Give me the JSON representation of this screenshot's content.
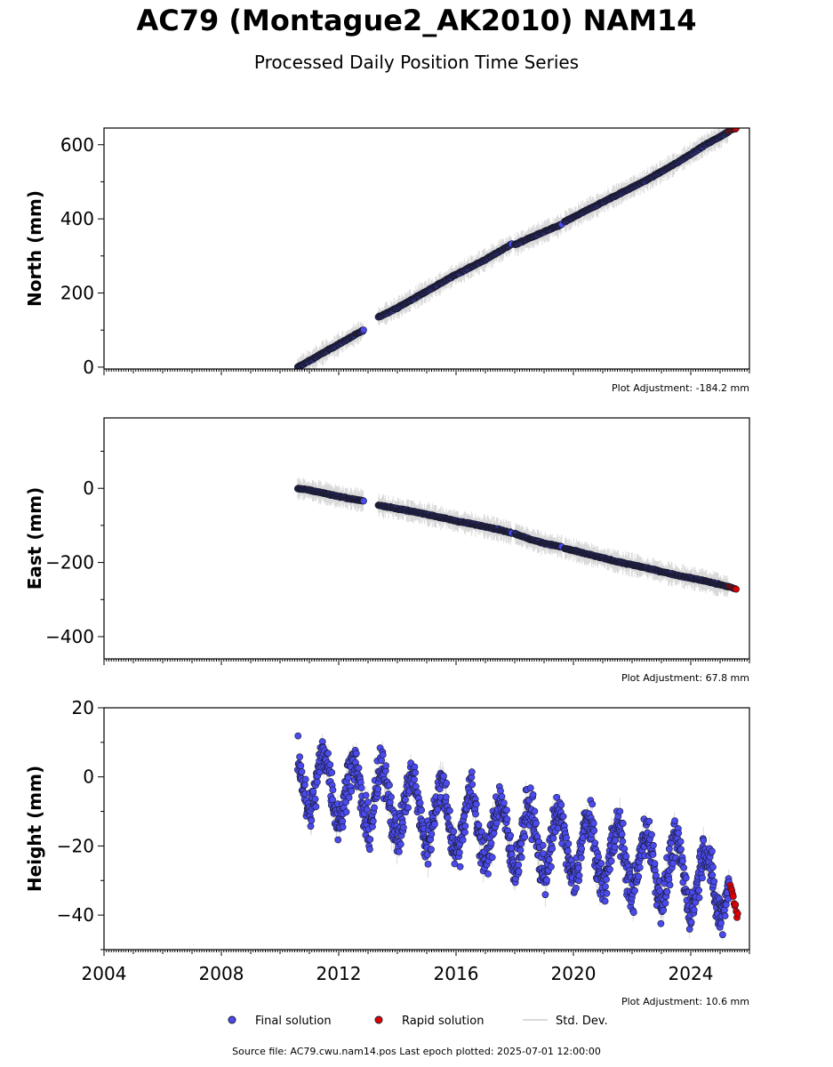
{
  "header": {
    "title": "AC79 (Montague2_AK2010) NAM14",
    "subtitle": "Processed Daily Position Time Series"
  },
  "footer": {
    "source": "Source file: AC79.cwu.nam14.pos  Last epoch plotted: 2025-07-01 12:00:00"
  },
  "legend": {
    "final": "Final solution",
    "rapid": "Rapid solution",
    "std": "Std. Dev."
  },
  "colors": {
    "final": "#4a4aee",
    "rapid": "#e00000",
    "marker_edge": "#1a1a2a",
    "std_dev": "#9a9a9a"
  },
  "chart_data": [
    {
      "type": "scatter",
      "ylabel": "North (mm)",
      "adjustment": "Plot Adjustment: -184.2 mm",
      "xlim": [
        2004.0,
        2026.0
      ],
      "ylim": [
        -5,
        645
      ],
      "yticks": [
        0,
        200,
        400,
        600
      ],
      "series": [
        {
          "name": "Final solution",
          "segments": [
            {
              "x": [
                2010.6,
                2011.0,
                2011.5,
                2012.0,
                2012.4,
                2012.85
              ],
              "y": [
                0,
                17,
                40,
                62,
                80,
                100
              ]
            },
            {
              "x": [
                2013.35,
                2014.0,
                2015.0,
                2016.0,
                2017.0,
                2017.9
              ],
              "y": [
                135,
                160,
                205,
                250,
                290,
                332
              ]
            },
            {
              "x": [
                2018.0,
                2018.5,
                2019.0,
                2019.6
              ],
              "y": [
                330,
                348,
                365,
                385
              ]
            },
            {
              "x": [
                2019.7,
                2020.5,
                2021.5,
                2022.5,
                2023.5,
                2024.5,
                2025.3
              ],
              "y": [
                392,
                425,
                465,
                505,
                550,
                600,
                635
              ]
            }
          ]
        },
        {
          "name": "Rapid solution",
          "x": [
            2025.3,
            2025.55
          ],
          "y": [
            638,
            644
          ]
        }
      ]
    },
    {
      "type": "scatter",
      "ylabel": "East (mm)",
      "adjustment": "Plot Adjustment: 67.8 mm",
      "xlim": [
        2004.0,
        2026.0
      ],
      "ylim": [
        -460,
        190
      ],
      "yticks": [
        -400,
        -200,
        0
      ],
      "series": [
        {
          "name": "Final solution",
          "segments": [
            {
              "x": [
                2010.6,
                2011.0,
                2011.5,
                2012.0,
                2012.4,
                2012.85
              ],
              "y": [
                0,
                -5,
                -13,
                -22,
                -28,
                -34
              ]
            },
            {
              "x": [
                2013.35,
                2014.0,
                2015.0,
                2016.0,
                2017.0,
                2017.9
              ],
              "y": [
                -45,
                -55,
                -70,
                -88,
                -103,
                -120
              ]
            },
            {
              "x": [
                2018.0,
                2018.5,
                2019.0,
                2019.6
              ],
              "y": [
                -122,
                -137,
                -148,
                -158
              ]
            },
            {
              "x": [
                2019.7,
                2020.5,
                2021.5,
                2022.5,
                2023.5,
                2024.5,
                2025.3
              ],
              "y": [
                -162,
                -178,
                -198,
                -215,
                -234,
                -250,
                -266
              ]
            }
          ]
        },
        {
          "name": "Rapid solution",
          "x": [
            2025.3,
            2025.55
          ],
          "y": [
            -265,
            -272
          ]
        }
      ]
    },
    {
      "type": "scatter",
      "ylabel": "Height (mm)",
      "adjustment": "Plot Adjustment: 10.6 mm",
      "xlim": [
        2004.0,
        2026.0
      ],
      "ylim": [
        -50,
        20
      ],
      "yticks": [
        -40,
        -20,
        0,
        20
      ],
      "xticks": [
        2004,
        2008,
        2012,
        2016,
        2020,
        2024
      ],
      "series": [
        {
          "name": "Final solution",
          "x_start": 2010.6,
          "x_end": 2025.3,
          "trend": {
            "x": [
              2010.6,
              2014.0,
              2018.0,
              2022.0,
              2025.3
            ],
            "y": [
              0,
              -8,
              -17,
              -24,
              -32
            ]
          },
          "seasonal_amplitude_mm": 9,
          "scatter_mm": 6
        },
        {
          "name": "Rapid solution",
          "x": [
            2025.35,
            2025.6
          ],
          "y": [
            -32,
            -40
          ]
        }
      ]
    }
  ]
}
